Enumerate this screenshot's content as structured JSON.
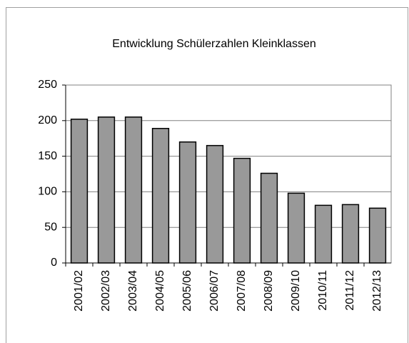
{
  "chart_data": {
    "type": "bar",
    "title": "Entwicklung Schülerzahlen Kleinklassen",
    "categories": [
      "2001/02",
      "2002/03",
      "2003/04",
      "2004/05",
      "2005/06",
      "2006/07",
      "2007/08",
      "2008/09",
      "2009/10",
      "2010/11",
      "2011/12",
      "2012/13"
    ],
    "values": [
      202,
      205,
      205,
      189,
      170,
      165,
      147,
      126,
      98,
      81,
      82,
      77
    ],
    "color": "#999999",
    "ylim": [
      0,
      250
    ],
    "yticks": [
      0,
      50,
      100,
      150,
      200,
      250
    ],
    "grid": true
  }
}
